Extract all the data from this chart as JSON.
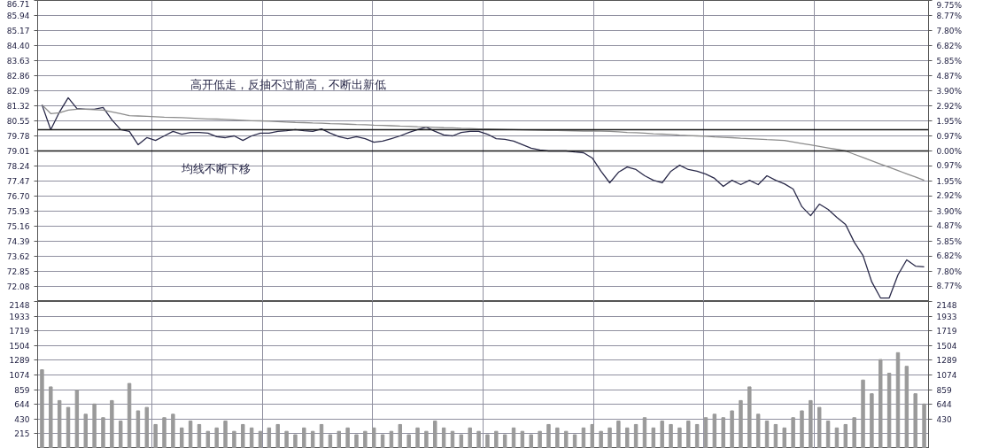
{
  "chart_data": [
    {
      "type": "line",
      "categories": [
        null,
        null,
        null,
        null,
        null,
        null,
        null,
        null,
        null,
        null,
        null,
        null,
        null,
        null,
        null,
        null,
        null,
        null,
        null,
        null,
        null,
        null,
        null,
        null,
        null,
        null,
        null,
        null,
        null,
        null,
        null,
        null,
        null,
        null,
        null,
        null,
        null,
        null,
        null,
        null,
        null,
        null,
        null,
        null,
        null,
        null,
        null,
        null,
        null,
        null,
        null,
        null,
        null,
        null,
        null,
        null,
        null,
        null,
        null,
        null,
        null,
        null,
        null,
        null,
        null,
        null,
        null,
        null,
        null,
        null,
        null,
        null,
        null,
        null,
        null,
        null,
        null,
        null,
        null,
        null,
        null,
        null,
        null,
        null,
        null,
        null,
        null,
        null,
        null,
        null,
        null,
        null,
        null,
        null,
        null,
        null,
        null,
        null,
        null,
        null,
        null,
        null
      ],
      "series": [
        {
          "color": "#2a2a4a",
          "values": [
            81.37,
            80.1,
            81.0,
            81.73,
            81.18,
            81.14,
            81.14,
            81.23,
            80.6,
            80.1,
            80.01,
            79.33,
            79.69,
            79.55,
            79.78,
            80.01,
            79.87,
            79.96,
            79.96,
            79.92,
            79.74,
            79.69,
            79.78,
            79.55,
            79.78,
            79.92,
            79.92,
            80.01,
            80.05,
            80.1,
            80.05,
            80.01,
            80.14,
            79.92,
            79.74,
            79.64,
            79.74,
            79.64,
            79.46,
            79.51,
            79.64,
            79.78,
            79.96,
            80.1,
            80.23,
            80.01,
            79.83,
            79.78,
            79.96,
            80.01,
            80.01,
            79.87,
            79.64,
            79.6,
            79.51,
            79.33,
            79.15,
            79.06,
            79.01,
            79.01,
            79.01,
            78.96,
            78.92,
            78.65,
            77.97,
            77.38,
            77.92,
            78.19,
            78.06,
            77.74,
            77.51,
            77.38,
            77.97,
            78.28,
            78.06,
            77.97,
            77.83,
            77.61,
            77.2,
            77.51,
            77.29,
            77.51,
            77.29,
            77.74,
            77.51,
            77.33,
            77.06,
            76.16,
            75.7,
            76.29,
            76.02,
            75.61,
            75.25,
            74.34,
            73.66,
            72.31,
            71.49,
            71.49,
            72.67,
            73.44,
            73.12,
            73.08
          ]
        },
        {
          "color": "#8c8c8c",
          "values": [
            81.37,
            80.92,
            80.96,
            81.1,
            81.14,
            81.14,
            81.12,
            81.1,
            81.01,
            80.92,
            80.82,
            80.8,
            80.78,
            80.76,
            80.74,
            80.73,
            80.71,
            80.69,
            80.67,
            80.65,
            80.64,
            80.62,
            80.6,
            80.58,
            80.56,
            80.55,
            80.53,
            80.51,
            80.49,
            80.47,
            80.46,
            80.44,
            80.43,
            80.41,
            80.4,
            80.38,
            80.36,
            80.35,
            80.33,
            80.32,
            80.3,
            80.28,
            80.27,
            80.25,
            80.24,
            80.22,
            80.2,
            80.19,
            80.17,
            80.16,
            80.14,
            80.13,
            80.12,
            80.11,
            80.1,
            80.09,
            80.08,
            80.07,
            80.06,
            80.06,
            80.05,
            80.04,
            80.03,
            80.03,
            80.02,
            80.01,
            79.99,
            79.96,
            79.94,
            79.92,
            79.89,
            79.87,
            79.85,
            79.82,
            79.8,
            79.78,
            79.76,
            79.73,
            79.71,
            79.69,
            79.66,
            79.64,
            79.62,
            79.59,
            79.57,
            79.55,
            79.47,
            79.39,
            79.32,
            79.24,
            79.16,
            79.09,
            79.01,
            78.84,
            78.68,
            78.51,
            78.34,
            78.18,
            78.01,
            77.84,
            77.68,
            77.51
          ]
        }
      ],
      "ylim": [
        71.31,
        86.71
      ],
      "yticks": [
        72.08,
        72.85,
        73.62,
        74.39,
        75.16,
        75.93,
        {
          "value": 76.7,
          "label": "76.70"
        },
        77.47,
        78.24,
        79.01,
        79.78,
        80.55,
        81.32,
        82.09,
        82.86,
        83.63,
        {
          "value": 84.4,
          "label": "84.40"
        },
        85.17,
        85.94,
        86.71
      ],
      "y2lim": [
        -9.75,
        9.75
      ],
      "y2ticks": [
        {
          "value": -8.77,
          "label": "8.77%"
        },
        {
          "value": -7.8,
          "label": "7.80%"
        },
        {
          "value": -6.82,
          "label": "6.82%"
        },
        {
          "value": -5.85,
          "label": "5.85%"
        },
        {
          "value": -4.87,
          "label": "4.87%"
        },
        {
          "value": -3.9,
          "label": "3.90%"
        },
        {
          "value": -2.92,
          "label": "2.92%"
        },
        {
          "value": -1.95,
          "label": "1.95%"
        },
        {
          "value": -0.97,
          "label": "0.97%"
        },
        {
          "value": 0,
          "label": "0.00%"
        },
        {
          "value": 0.97,
          "label": "0.97%"
        },
        {
          "value": 1.95,
          "label": "1.95%"
        },
        {
          "value": 2.92,
          "label": "2.92%"
        },
        {
          "value": 3.9,
          "label": "3.90%"
        },
        {
          "value": 4.87,
          "label": "4.87%"
        },
        {
          "value": 5.85,
          "label": "5.85%"
        },
        {
          "value": 6.82,
          "label": "6.82%"
        },
        {
          "value": 7.8,
          "label": "7.80%"
        },
        {
          "value": 8.77,
          "label": "8.77%"
        },
        {
          "value": 9.75,
          "label": "9.75%"
        }
      ],
      "ref_lines": [
        {
          "axis": "y",
          "value": 80.1,
          "color": "#1a1a1a"
        },
        {
          "axis": "y",
          "value": 79.01,
          "color": "#1a1a1a"
        }
      ],
      "annotations": [
        "高开低走，反抽不过前高，不断出新低",
        "均线不断下移"
      ],
      "grid": true,
      "marker": "none",
      "line_style": "solid"
    },
    {
      "type": "bar",
      "categories": [
        null,
        null,
        null,
        null,
        null,
        null,
        null,
        null,
        null,
        null,
        null,
        null,
        null,
        null,
        null,
        null,
        null,
        null,
        null,
        null,
        null,
        null,
        null,
        null,
        null,
        null,
        null,
        null,
        null,
        null,
        null,
        null,
        null,
        null,
        null,
        null,
        null,
        null,
        null,
        null,
        null,
        null,
        null,
        null,
        null,
        null,
        null,
        null,
        null,
        null,
        null,
        null,
        null,
        null,
        null,
        null,
        null,
        null,
        null,
        null,
        null,
        null,
        null,
        null,
        null,
        null,
        null,
        null,
        null,
        null,
        null,
        null,
        null,
        null,
        null,
        null,
        null,
        null,
        null,
        null,
        null,
        null,
        null,
        null,
        null,
        null,
        null,
        null,
        null,
        null,
        null,
        null,
        null,
        null,
        null,
        null,
        null,
        null,
        null,
        null,
        null,
        null
      ],
      "color": "#9a9a9a",
      "values": [
        1150,
        900,
        700,
        600,
        850,
        500,
        650,
        450,
        700,
        400,
        950,
        550,
        600,
        350,
        450,
        500,
        300,
        400,
        350,
        250,
        300,
        400,
        250,
        350,
        300,
        250,
        300,
        350,
        250,
        200,
        300,
        250,
        350,
        200,
        250,
        300,
        200,
        250,
        300,
        200,
        250,
        350,
        200,
        300,
        250,
        400,
        300,
        250,
        200,
        300,
        250,
        200,
        250,
        200,
        300,
        250,
        200,
        250,
        350,
        300,
        250,
        200,
        300,
        350,
        250,
        300,
        400,
        300,
        350,
        450,
        300,
        400,
        350,
        300,
        400,
        350,
        450,
        500,
        450,
        550,
        700,
        900,
        500,
        400,
        350,
        300,
        450,
        550,
        700,
        600,
        400,
        300,
        350,
        450,
        1000,
        800,
        1300,
        1100,
        1400,
        1200,
        800,
        650
      ],
      "ylim": [
        0,
        2148
      ],
      "yticks": [
        215,
        430,
        644,
        859,
        1074,
        1289,
        1504,
        1719,
        1933,
        2148
      ],
      "y2lim": [
        0,
        2148
      ],
      "y2ticks": [
        430,
        644,
        859,
        1074,
        1289,
        1504,
        1719,
        1933,
        2148
      ],
      "grid": true
    }
  ]
}
